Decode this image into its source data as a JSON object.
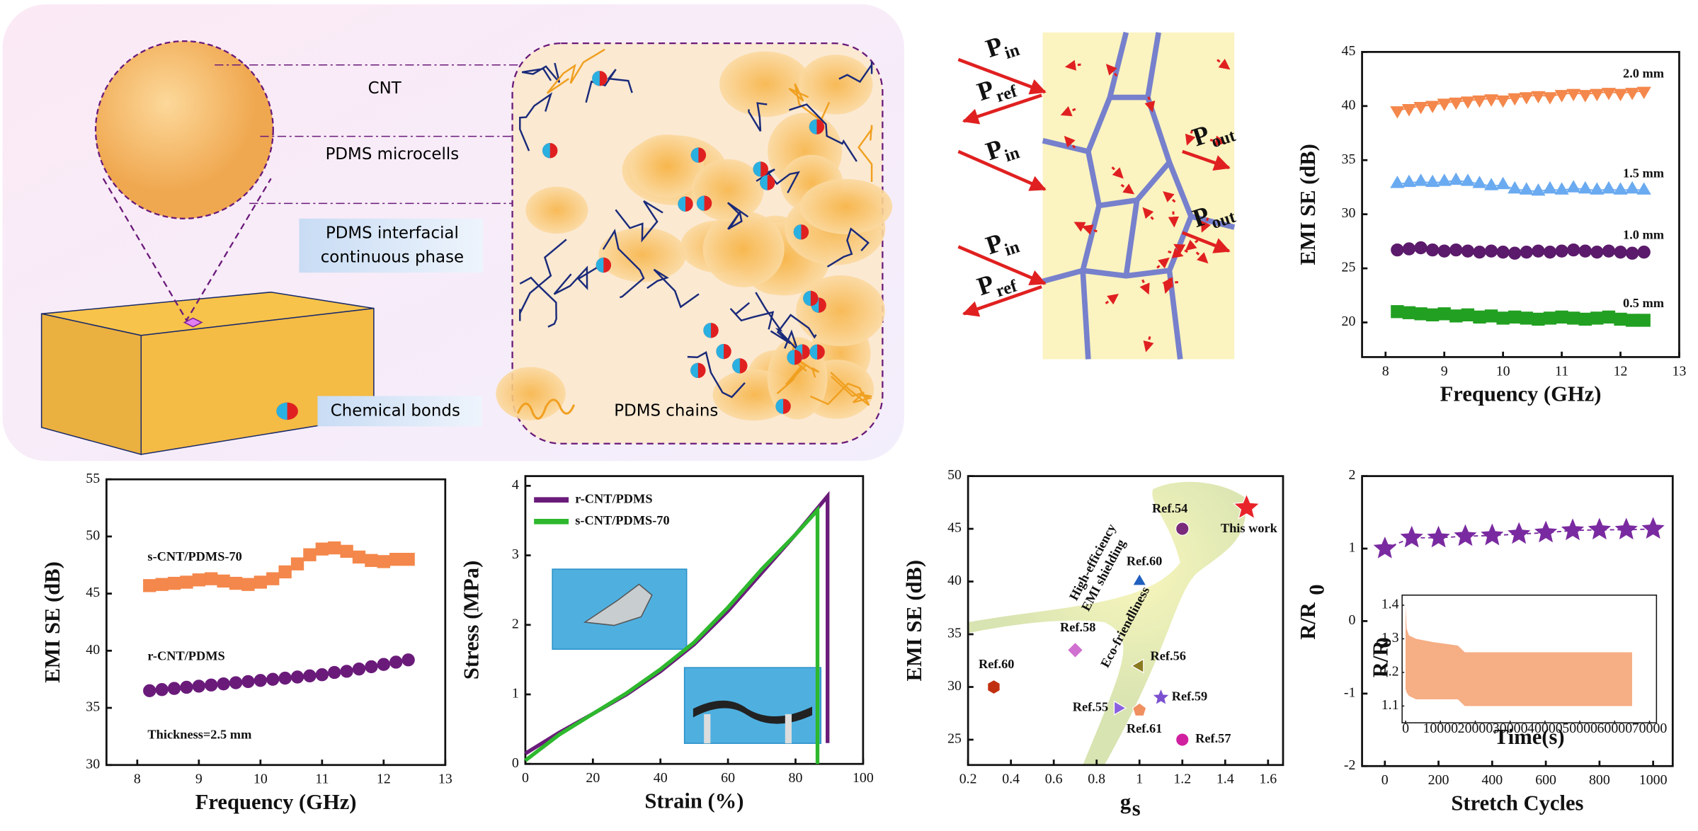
{
  "schematic": {
    "labels": [
      "CNT",
      "PDMS microcells",
      "PDMS interfacial",
      "continuous phase",
      "Chemical bonds",
      "PDMS chains"
    ]
  },
  "wave_diagram": {
    "labels": [
      {
        "main": "P",
        "sub": "in"
      },
      {
        "main": "P",
        "sub": "ref"
      },
      {
        "main": "P",
        "sub": "in"
      },
      {
        "main": "P",
        "sub": "out"
      },
      {
        "main": "P",
        "sub": "out"
      },
      {
        "main": "P",
        "sub": "in"
      },
      {
        "main": "P",
        "sub": "ref"
      }
    ]
  },
  "chart_data": [
    {
      "type": "line",
      "x_label": "Frequency (GHz)",
      "y_label": "EMI SE (dB)",
      "x": [
        8.2,
        8.4,
        8.6,
        8.8,
        9.0,
        9.2,
        9.4,
        9.6,
        9.8,
        10.0,
        10.2,
        10.4,
        10.6,
        10.8,
        11.0,
        11.2,
        11.4,
        11.6,
        11.8,
        12.0,
        12.2,
        12.4
      ],
      "series": [
        {
          "name": "2.0 mm",
          "color": "#f4874b",
          "marker": "triangle-down",
          "values": [
            39.6,
            39.8,
            40.0,
            40.1,
            40.3,
            40.4,
            40.5,
            40.6,
            40.7,
            40.6,
            40.8,
            40.9,
            41.0,
            40.9,
            41.1,
            41.2,
            41.1,
            41.2,
            41.3,
            41.2,
            41.3,
            41.4
          ]
        },
        {
          "name": "1.5 mm",
          "color": "#6aaaf0",
          "marker": "triangle-up",
          "values": [
            32.8,
            32.9,
            33.0,
            32.9,
            33.0,
            33.1,
            33.0,
            32.8,
            32.6,
            32.7,
            32.3,
            32.2,
            32.1,
            32.3,
            32.2,
            32.4,
            32.3,
            32.2,
            32.3,
            32.2,
            32.3,
            32.2
          ]
        },
        {
          "name": "1.0 mm",
          "color": "#5b1a6b",
          "marker": "circle",
          "values": [
            26.7,
            26.8,
            26.9,
            26.7,
            26.6,
            26.7,
            26.6,
            26.5,
            26.6,
            26.5,
            26.4,
            26.5,
            26.6,
            26.5,
            26.6,
            26.7,
            26.6,
            26.5,
            26.6,
            26.5,
            26.4,
            26.5
          ]
        },
        {
          "name": "0.5 mm",
          "color": "#22a022",
          "marker": "square",
          "values": [
            21.0,
            20.9,
            20.8,
            20.7,
            20.8,
            20.6,
            20.7,
            20.5,
            20.6,
            20.4,
            20.5,
            20.4,
            20.3,
            20.4,
            20.5,
            20.4,
            20.3,
            20.4,
            20.5,
            20.3,
            20.2,
            20.2
          ]
        }
      ],
      "xlim": [
        7.6,
        13
      ],
      "xticks": [
        8,
        9,
        10,
        11,
        12,
        13
      ],
      "ylim": [
        16.8,
        45
      ],
      "yticks": [
        20,
        25,
        30,
        35,
        40,
        45
      ]
    },
    {
      "type": "line",
      "x_label": "Frequency (GHz)",
      "y_label": "EMI SE (dB)",
      "annotation": "Thickness=2.5 mm",
      "x": [
        8.2,
        8.4,
        8.6,
        8.8,
        9.0,
        9.2,
        9.4,
        9.6,
        9.8,
        10.0,
        10.2,
        10.4,
        10.6,
        10.8,
        11.0,
        11.2,
        11.4,
        11.6,
        11.8,
        12.0,
        12.2,
        12.4
      ],
      "series": [
        {
          "name": "s-CNT/PDMS-70",
          "color": "#f4874b",
          "marker": "square",
          "values": [
            45.7,
            45.8,
            45.9,
            46.0,
            46.2,
            46.3,
            46.1,
            45.9,
            45.8,
            46.0,
            46.3,
            46.9,
            47.6,
            48.4,
            48.9,
            49.0,
            48.7,
            48.2,
            47.9,
            47.8,
            48.0,
            48.0
          ]
        },
        {
          "name": "r-CNT/PDMS",
          "color": "#6a1b7a",
          "marker": "circle",
          "values": [
            36.5,
            36.6,
            36.7,
            36.8,
            36.9,
            37.0,
            37.1,
            37.2,
            37.3,
            37.4,
            37.5,
            37.6,
            37.7,
            37.8,
            37.9,
            38.1,
            38.2,
            38.4,
            38.6,
            38.8,
            39.0,
            39.2
          ]
        }
      ],
      "xlim": [
        7.5,
        13
      ],
      "xticks": [
        8,
        9,
        10,
        11,
        12,
        13
      ],
      "ylim": [
        30,
        55
      ],
      "yticks": [
        30,
        35,
        40,
        45,
        50,
        55
      ]
    },
    {
      "type": "line",
      "x_label": "Strain (%)",
      "y_label": "Stress (MPa)",
      "legend": "upper left",
      "series": [
        {
          "name": "r-CNT/PDMS",
          "color": "#6a1b7a",
          "x": [
            0,
            10,
            20,
            30,
            40,
            50,
            60,
            70,
            80,
            89.5,
            89.5
          ],
          "values": [
            0.15,
            0.45,
            0.72,
            1.0,
            1.33,
            1.72,
            2.2,
            2.75,
            3.3,
            3.85,
            0.3
          ]
        },
        {
          "name": "s-CNT/PDMS-70",
          "color": "#2db82d",
          "x": [
            0,
            10,
            20,
            30,
            40,
            50,
            60,
            70,
            80,
            86.5,
            86.5
          ],
          "values": [
            0.05,
            0.42,
            0.72,
            1.02,
            1.36,
            1.75,
            2.25,
            2.8,
            3.3,
            3.65,
            0
          ]
        }
      ],
      "xlim": [
        0,
        100
      ],
      "xticks": [
        0,
        20,
        40,
        60,
        80,
        100
      ],
      "ylim": [
        0,
        4.14
      ],
      "yticks": [
        0,
        1,
        2,
        3,
        4
      ]
    },
    {
      "type": "scatter",
      "x_label": "g",
      "x_label_sub": "s",
      "y_label": "EMI SE (dB)",
      "annotations": [
        "High-efficiency",
        "EMI shielding",
        "Eco-friendliness"
      ],
      "x": [
        1.2,
        1.5,
        1.0,
        0.7,
        1.0,
        0.32,
        1.1,
        0.9,
        1.0,
        1.2
      ],
      "values": [
        45,
        47,
        40,
        33.5,
        32,
        30,
        29,
        28,
        27.8,
        25
      ],
      "labels": [
        "Ref.54",
        "This work",
        "Ref.60",
        "Ref.58",
        "Ref.56",
        "Ref.60",
        "Ref.59",
        "Ref.55",
        "Ref.61",
        "Ref.57"
      ],
      "colors": [
        "#7a2a7a",
        "#e8242a",
        "#2060c0",
        "#d070d0",
        "#8a7a20",
        "#c03010",
        "#7a50d0",
        "#8a60e0",
        "#f09060",
        "#d020a0"
      ],
      "markers": [
        "circle",
        "star",
        "triangle-up",
        "diamond",
        "triangle-left",
        "hexagon",
        "star",
        "triangle-right",
        "pentagon",
        "circle"
      ],
      "xlim": [
        0.2,
        1.67
      ],
      "xticks": [
        0.2,
        0.4,
        0.6,
        0.8,
        1.0,
        1.2,
        1.4,
        1.6
      ],
      "ylim": [
        22.6,
        50
      ],
      "yticks": [
        25,
        30,
        35,
        40,
        45,
        50
      ]
    },
    {
      "type": "line",
      "x_label": "Stretch Cycles",
      "y_label": "R/R",
      "y_label_sub": "0",
      "x": [
        0,
        100,
        200,
        300,
        400,
        500,
        600,
        700,
        800,
        900,
        1000
      ],
      "series": [
        {
          "color": "#7a2aa0",
          "marker": "star",
          "values": [
            1.0,
            1.15,
            1.15,
            1.17,
            1.18,
            1.2,
            1.22,
            1.25,
            1.26,
            1.26,
            1.27
          ]
        }
      ],
      "xlim": [
        -85,
        1073
      ],
      "xticks": [
        0,
        200,
        400,
        600,
        800,
        1000
      ],
      "ylim": [
        -2,
        2
      ],
      "yticks": [
        -2,
        -1,
        0,
        1,
        2
      ],
      "inset": {
        "type": "area",
        "x_label": "Time(s)",
        "y_label": "R/R",
        "y_label_sub": "0",
        "color": "#f4a070",
        "x": [
          0,
          300,
          1000,
          3000,
          8000,
          15000,
          17000,
          30000,
          45000,
          55000,
          65000
        ],
        "upper": [
          1.4,
          1.33,
          1.31,
          1.3,
          1.29,
          1.28,
          1.26,
          1.26,
          1.26,
          1.26,
          1.26
        ],
        "lower": [
          1.15,
          1.14,
          1.13,
          1.12,
          1.12,
          1.12,
          1.1,
          1.1,
          1.1,
          1.1,
          1.1
        ],
        "xlim": [
          -1000,
          72000
        ],
        "xticks": [
          0,
          10000,
          20000,
          30000,
          40000,
          50000,
          60000,
          70000
        ],
        "ylim": [
          1.05,
          1.43
        ],
        "yticks": [
          1.1,
          1.2,
          1.3,
          1.4
        ]
      }
    }
  ]
}
